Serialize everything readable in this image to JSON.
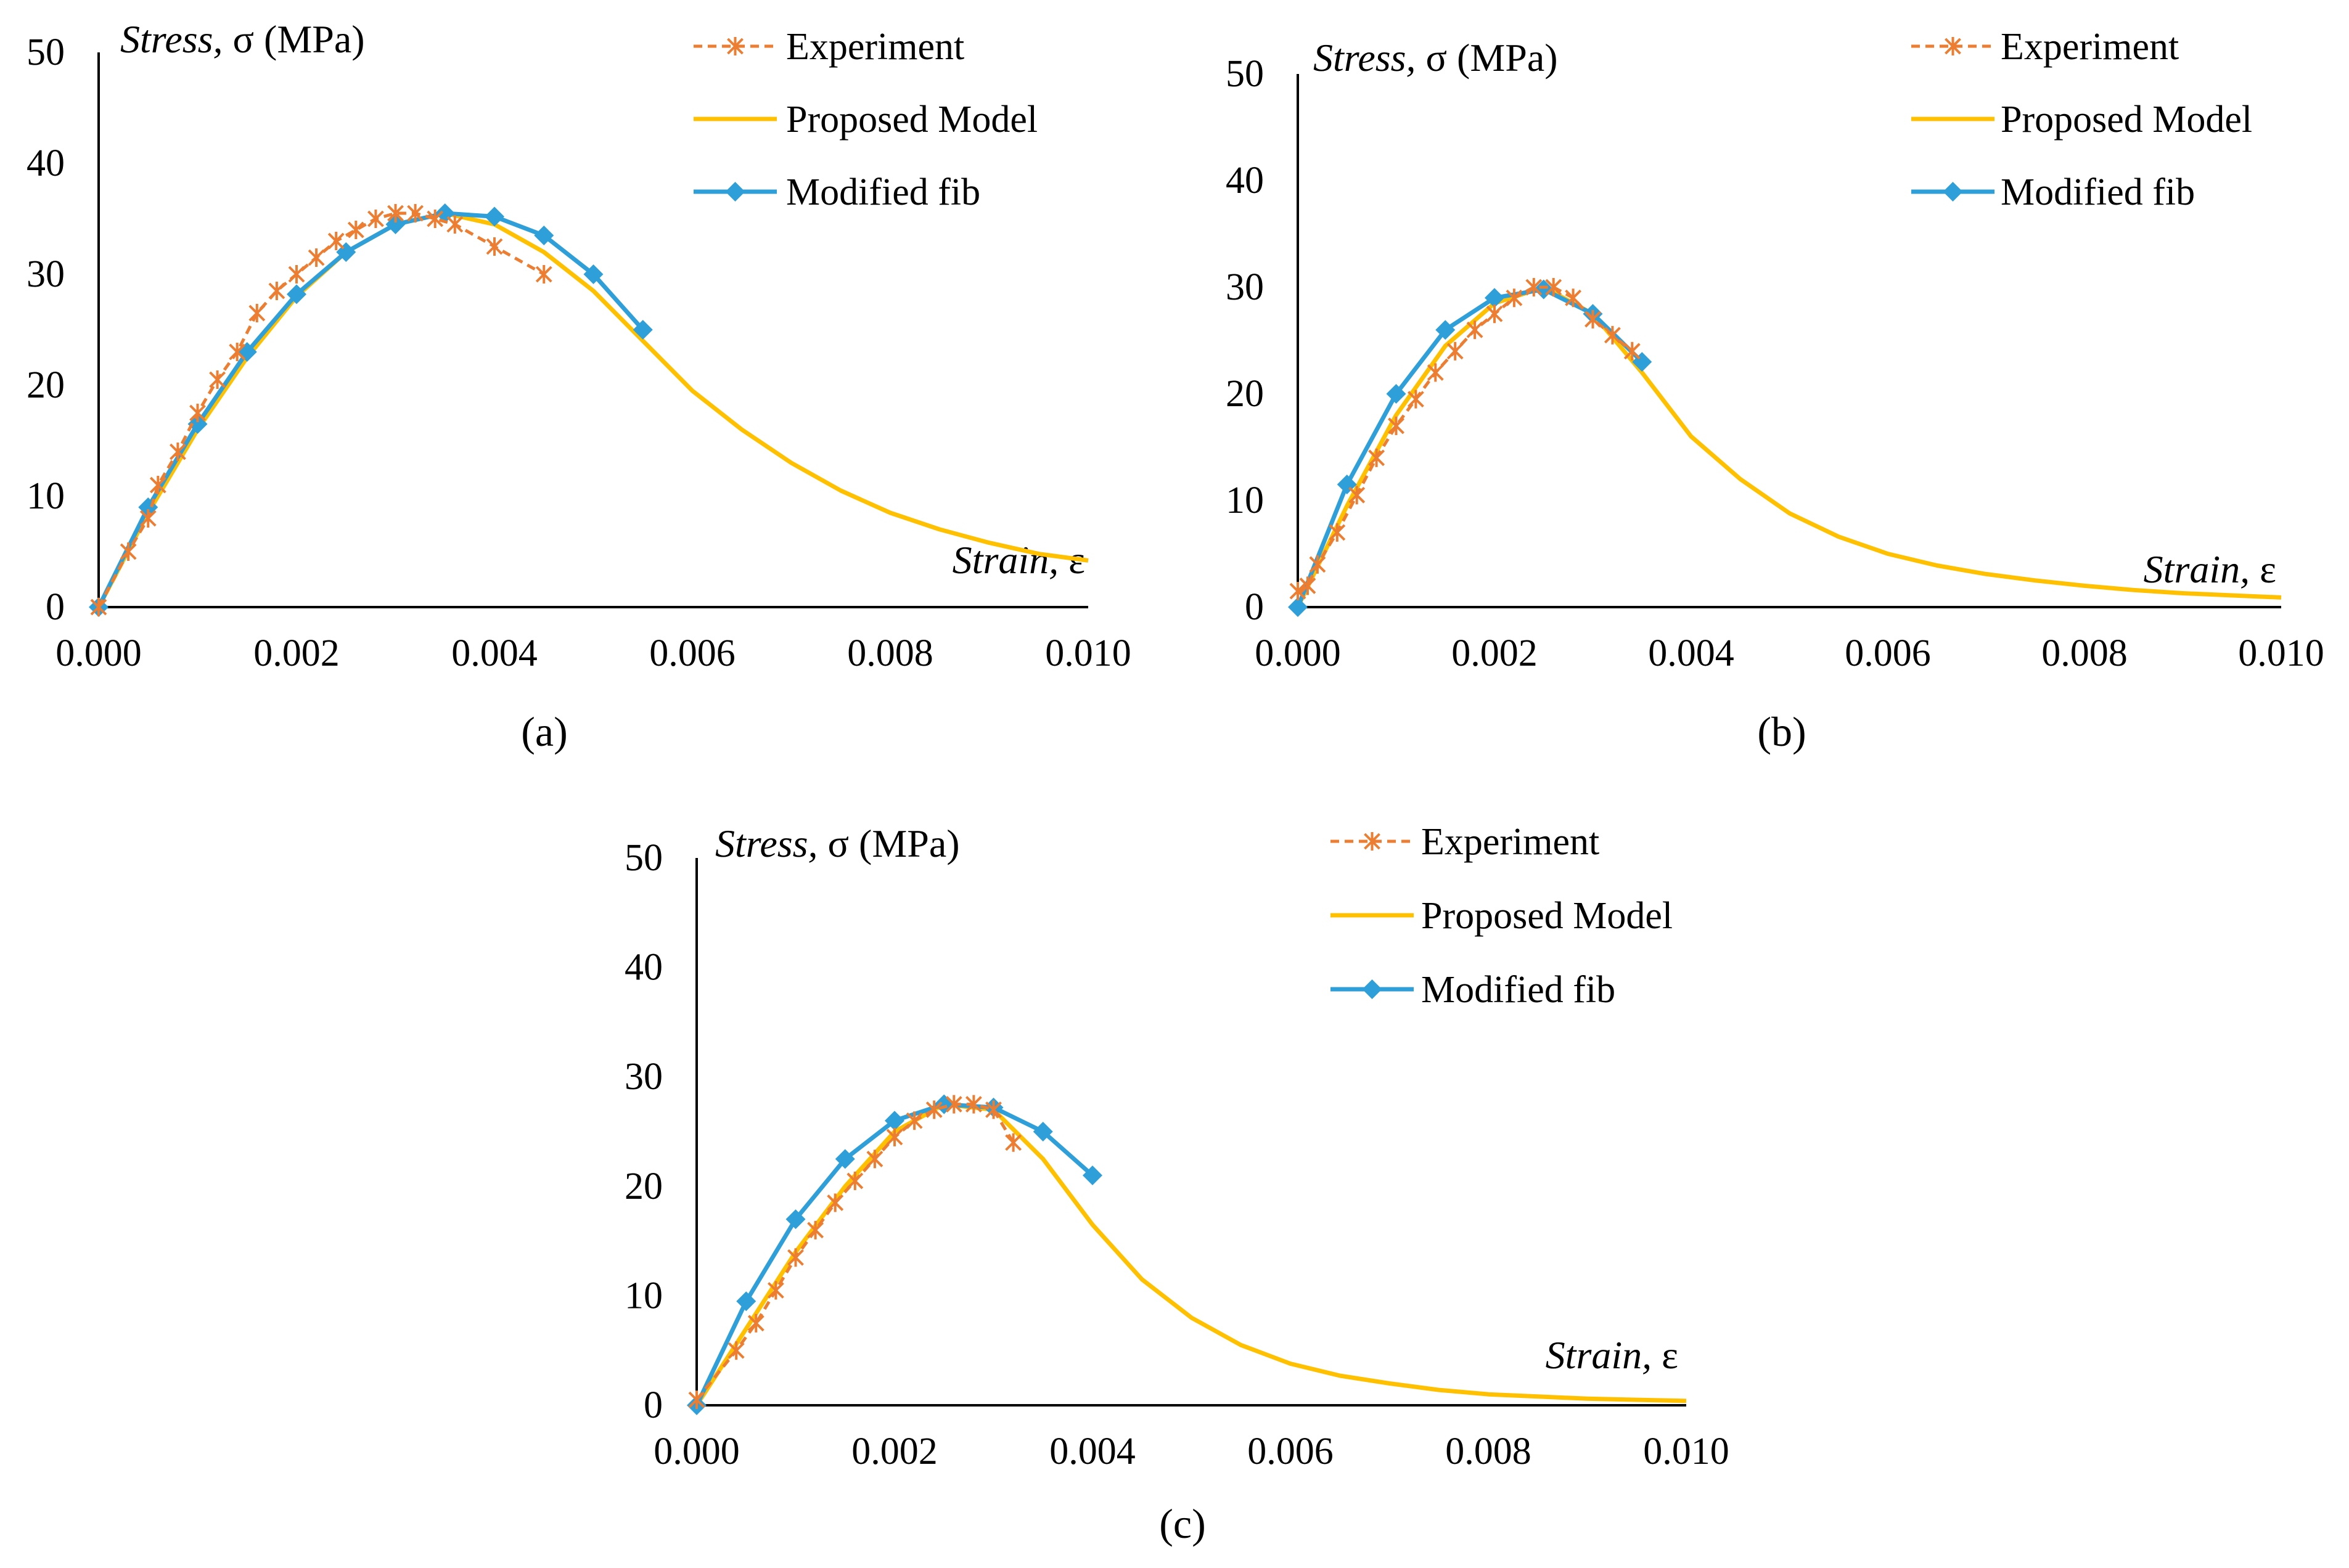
{
  "colors": {
    "experiment": "#ED7D31",
    "proposed": "#FFC000",
    "modified": "#2E9FD8",
    "axis": "#000000"
  },
  "legend": {
    "experiment": "Experiment",
    "proposed": "Proposed Model",
    "modified": "Modified fib"
  },
  "chart_data": [
    {
      "type": "line",
      "panel_label": "(a)",
      "ylabel_italic": "Stress,",
      "ylabel_rest": " σ (MPa)",
      "xlabel_italic": "Strain,",
      "xlabel_rest": " ε",
      "xlim": [
        0,
        0.01
      ],
      "ylim": [
        0,
        50
      ],
      "xticks": [
        "0.000",
        "0.002",
        "0.004",
        "0.006",
        "0.008",
        "0.010"
      ],
      "yticks": [
        "0",
        "10",
        "20",
        "30",
        "40",
        "50"
      ],
      "series": [
        {
          "key": "experiment",
          "x": [
            0,
            0.0003,
            0.0005,
            0.0006,
            0.0008,
            0.001,
            0.0012,
            0.0014,
            0.0016,
            0.0018,
            0.002,
            0.0022,
            0.0024,
            0.0026,
            0.0028,
            0.003,
            0.0032,
            0.0034,
            0.0036,
            0.004,
            0.0045
          ],
          "y": [
            0,
            5,
            8,
            11,
            14,
            17.5,
            20.5,
            23,
            26.5,
            28.5,
            30,
            31.5,
            33,
            34,
            35,
            35.5,
            35.5,
            35,
            34.5,
            32.5,
            30
          ]
        },
        {
          "key": "proposed",
          "x": [
            0,
            0.0005,
            0.001,
            0.0015,
            0.002,
            0.0025,
            0.003,
            0.0035,
            0.004,
            0.0045,
            0.005,
            0.0055,
            0.006,
            0.0065,
            0.007,
            0.0075,
            0.008,
            0.0085,
            0.009,
            0.0095,
            0.01
          ],
          "y": [
            0,
            8.5,
            16,
            22.5,
            28,
            32,
            34.5,
            35.5,
            34.5,
            32,
            28.5,
            24,
            19.5,
            16,
            13,
            10.5,
            8.5,
            7,
            5.8,
            4.8,
            4.2
          ]
        },
        {
          "key": "modified",
          "x": [
            0,
            0.0005,
            0.001,
            0.0015,
            0.002,
            0.0025,
            0.003,
            0.0035,
            0.004,
            0.0045,
            0.005,
            0.0055
          ],
          "y": [
            0,
            9,
            16.5,
            23,
            28.2,
            32,
            34.5,
            35.5,
            35.2,
            33.5,
            30,
            25
          ]
        }
      ]
    },
    {
      "type": "line",
      "panel_label": "(b)",
      "ylabel_italic": "Stress,",
      "ylabel_rest": " σ (MPa)",
      "xlabel_italic": "Strain,",
      "xlabel_rest": " ε",
      "xlim": [
        0,
        0.01
      ],
      "ylim": [
        0,
        50
      ],
      "xticks": [
        "0.000",
        "0.002",
        "0.004",
        "0.006",
        "0.008",
        "0.010"
      ],
      "yticks": [
        "0",
        "10",
        "20",
        "30",
        "40",
        "50"
      ],
      "series": [
        {
          "key": "experiment",
          "x": [
            0,
            0.0001,
            0.0002,
            0.0004,
            0.0006,
            0.0008,
            0.001,
            0.0012,
            0.0014,
            0.0016,
            0.0018,
            0.002,
            0.0022,
            0.0024,
            0.0026,
            0.0028,
            0.003,
            0.0032,
            0.0034
          ],
          "y": [
            1.5,
            2,
            4,
            7,
            10.5,
            14,
            17,
            19.5,
            22,
            24,
            26,
            27.5,
            29,
            30,
            30,
            29,
            27,
            25.5,
            24
          ]
        },
        {
          "key": "proposed",
          "x": [
            0,
            0.0005,
            0.001,
            0.0015,
            0.002,
            0.0025,
            0.003,
            0.0035,
            0.004,
            0.0045,
            0.005,
            0.0055,
            0.006,
            0.0065,
            0.007,
            0.0075,
            0.008,
            0.0085,
            0.009,
            0.0095,
            0.01
          ],
          "y": [
            0,
            9.5,
            18,
            24.5,
            28.5,
            30,
            27.5,
            22,
            16,
            12,
            8.8,
            6.6,
            5,
            3.9,
            3.1,
            2.5,
            2,
            1.6,
            1.3,
            1.1,
            0.9
          ]
        },
        {
          "key": "modified",
          "x": [
            0,
            0.0005,
            0.001,
            0.0015,
            0.002,
            0.0025,
            0.003,
            0.0035
          ],
          "y": [
            0,
            11.5,
            20,
            26,
            29,
            29.8,
            27.5,
            23
          ]
        }
      ]
    },
    {
      "type": "line",
      "panel_label": "(c)",
      "ylabel_italic": "Stress,",
      "ylabel_rest": " σ (MPa)",
      "xlabel_italic": "Strain,",
      "xlabel_rest": " ε",
      "xlim": [
        0,
        0.01
      ],
      "ylim": [
        0,
        50
      ],
      "xticks": [
        "0.000",
        "0.002",
        "0.004",
        "0.006",
        "0.008",
        "0.010"
      ],
      "yticks": [
        "0",
        "10",
        "20",
        "30",
        "40",
        "50"
      ],
      "series": [
        {
          "key": "experiment",
          "x": [
            0,
            0.0004,
            0.0006,
            0.0008,
            0.001,
            0.0012,
            0.0014,
            0.0016,
            0.0018,
            0.002,
            0.0022,
            0.0024,
            0.0026,
            0.0028,
            0.003,
            0.0032
          ],
          "y": [
            0.5,
            5,
            7.5,
            10.5,
            13.5,
            16,
            18.5,
            20.5,
            22.5,
            24.5,
            26,
            27,
            27.5,
            27.5,
            27,
            24
          ]
        },
        {
          "key": "proposed",
          "x": [
            0,
            0.0005,
            0.001,
            0.0015,
            0.002,
            0.0025,
            0.003,
            0.0035,
            0.004,
            0.0045,
            0.005,
            0.0055,
            0.006,
            0.0065,
            0.007,
            0.0075,
            0.008,
            0.0085,
            0.009,
            0.0095,
            0.01
          ],
          "y": [
            0,
            7,
            14,
            20,
            25,
            27.5,
            27,
            22.5,
            16.5,
            11.5,
            8,
            5.5,
            3.8,
            2.7,
            2,
            1.4,
            1,
            0.8,
            0.6,
            0.5,
            0.4
          ]
        },
        {
          "key": "modified",
          "x": [
            0,
            0.0005,
            0.001,
            0.0015,
            0.002,
            0.0025,
            0.003,
            0.0035,
            0.004
          ],
          "y": [
            0,
            9.5,
            17,
            22.5,
            26,
            27.5,
            27.2,
            25,
            21
          ]
        }
      ]
    }
  ]
}
